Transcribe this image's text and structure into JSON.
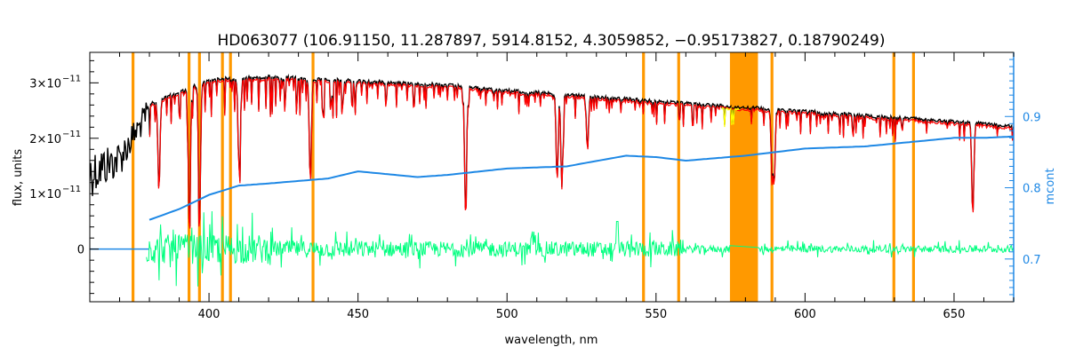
{
  "chart_data": {
    "type": "line",
    "title": "HD063077   (106.91150, 11.287897, 5914.8152, 4.3059852, −0.95173827, 0.18790249)",
    "xlabel": "wavelength, nm",
    "ylabel": "flux, units",
    "ylabel_right": "mcont",
    "xlim": [
      360,
      670
    ],
    "ylim": [
      -9.5e-12,
      3.55e-11
    ],
    "ylim_right": [
      0.64,
      0.99
    ],
    "x_ticks": [
      {
        "value": 400,
        "label": "400"
      },
      {
        "value": 450,
        "label": "450"
      },
      {
        "value": 500,
        "label": "500"
      },
      {
        "value": 550,
        "label": "550"
      },
      {
        "value": 600,
        "label": "600"
      },
      {
        "value": 650,
        "label": "650"
      }
    ],
    "y_ticks": [
      {
        "value": 0,
        "label": "0"
      },
      {
        "value": 1e-11,
        "mantissa": "1×10",
        "exp": "−11"
      },
      {
        "value": 2e-11,
        "mantissa": "2×10",
        "exp": "−11"
      },
      {
        "value": 3e-11,
        "mantissa": "3×10",
        "exp": "−11"
      }
    ],
    "y_right_ticks": [
      {
        "value": 0.7,
        "label": "0.7"
      },
      {
        "value": 0.8,
        "label": "0.8"
      },
      {
        "value": 0.9,
        "label": "0.9"
      }
    ],
    "colors": {
      "observed": "#000000",
      "model": "#ff0000",
      "residual": "#00ff7f",
      "continuum": "#1e88e5",
      "mask": "#ff9900",
      "masked_model": "#ffff00",
      "right_axis": "#1e88e5"
    },
    "masked_lines_nm": [
      374.5,
      393.3,
      396.8,
      404.5,
      407.2,
      434.9,
      545.8,
      557.6,
      588.9,
      629.8,
      636.4
    ],
    "masked_band_nm": [
      574.8,
      584.2
    ],
    "series": [
      {
        "key": "observed",
        "x": [
          360,
          370,
          380,
          400,
          420,
          440,
          460,
          480,
          500,
          520,
          540,
          560,
          580,
          600,
          620,
          640,
          660,
          670
        ],
        "y": [
          1.6e-11,
          1.8e-11,
          2.6e-11,
          3.05e-11,
          3.1e-11,
          3.05e-11,
          3e-11,
          2.95e-11,
          2.85e-11,
          2.78e-11,
          2.7e-11,
          2.62e-11,
          2.55e-11,
          2.48e-11,
          2.4e-11,
          2.33e-11,
          2.25e-11,
          2.2e-11
        ]
      },
      {
        "key": "continuum",
        "x": [
          380,
          390,
          400,
          410,
          420,
          440,
          450,
          470,
          480,
          500,
          520,
          540,
          550,
          560,
          580,
          600,
          620,
          640,
          650,
          660,
          670
        ],
        "y": [
          0.755,
          0.77,
          0.79,
          0.803,
          0.806,
          0.813,
          0.823,
          0.815,
          0.818,
          0.827,
          0.83,
          0.845,
          0.843,
          0.838,
          0.845,
          0.855,
          0.858,
          0.866,
          0.87,
          0.87,
          0.872
        ]
      }
    ]
  }
}
